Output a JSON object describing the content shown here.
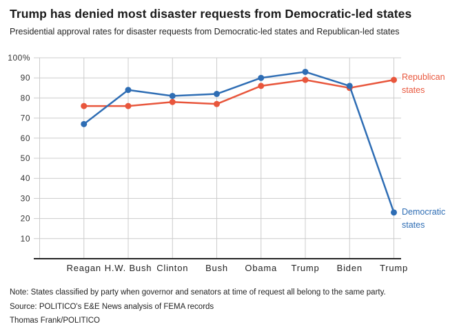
{
  "header": {
    "title": "Trump has denied most disaster requests from Democratic-led states",
    "subtitle": "Presidential approval rates for disaster requests from Democratic-led states and Republican-led states"
  },
  "chart_data": {
    "type": "line",
    "categories": [
      "Reagan",
      "H.W. Bush",
      "Clinton",
      "Bush",
      "Obama",
      "Trump",
      "Biden",
      "Trump"
    ],
    "series": [
      {
        "name": "Republican states",
        "label_display": "Republican\nstates",
        "color": "#e8563c",
        "values": [
          76,
          76,
          78,
          77,
          86,
          89,
          85,
          89
        ]
      },
      {
        "name": "Democratic states",
        "label_display": "Democratic\nstates",
        "color": "#2e6db4",
        "values": [
          67,
          84,
          81,
          82,
          90,
          93,
          86,
          23
        ]
      }
    ],
    "title": "Trump has denied most disaster requests from Democratic-led states",
    "xlabel": "",
    "ylabel": "",
    "ylim": [
      0,
      100
    ],
    "yticks": [
      10,
      20,
      30,
      40,
      50,
      60,
      70,
      80,
      90,
      100
    ],
    "ytick_labels": [
      "10",
      "20",
      "30",
      "40",
      "50",
      "60",
      "70",
      "80",
      "90",
      "100%"
    ],
    "grid": true,
    "legend_position": "right-of-line-ends"
  },
  "footer": {
    "note": "Note: States classified by party when governor and senators at time of request all belong to the same party.",
    "source": "Source: POLITICO's E&E News analysis of FEMA records",
    "byline": "Thomas Frank/POLITICO"
  },
  "colors": {
    "republican": "#e8563c",
    "democratic": "#2e6db4",
    "grid": "#cccccc",
    "axis": "#222222",
    "tick_text": "#333333",
    "title_text": "#1a1a1a"
  }
}
